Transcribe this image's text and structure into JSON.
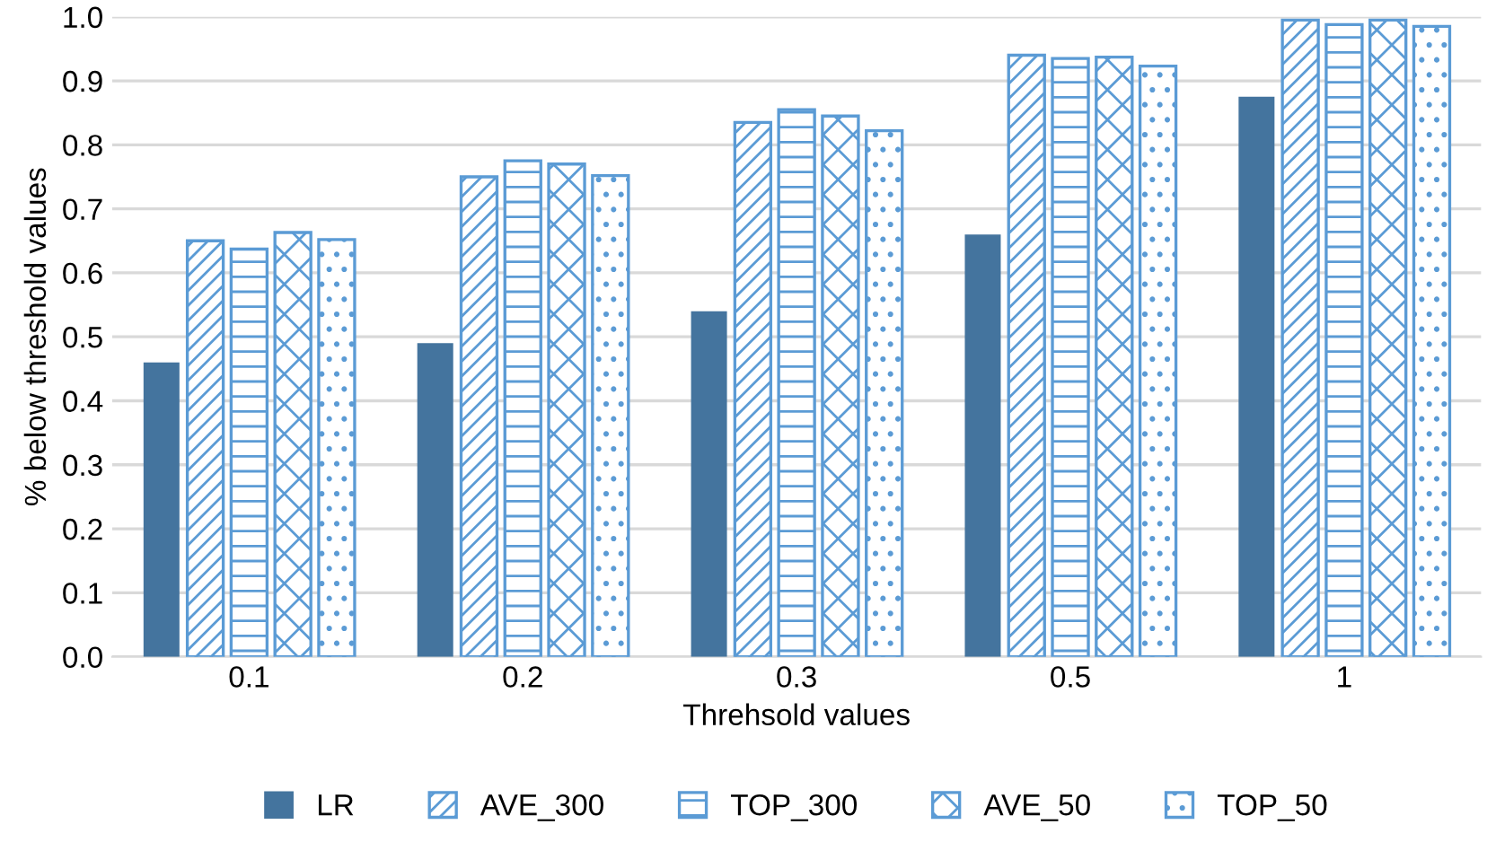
{
  "chart_data": {
    "type": "bar",
    "xlabel": "Threhsold values",
    "ylabel": "% below threshold values",
    "categories": [
      "0.1",
      "0.2",
      "0.3",
      "0.5",
      "1"
    ],
    "series": [
      {
        "name": "LR",
        "color": "#44749e",
        "values": [
          0.46,
          0.49,
          0.54,
          0.66,
          0.875
        ]
      },
      {
        "name": "AVE_300",
        "color": "#5b9bd5",
        "values": [
          0.65,
          0.75,
          0.835,
          0.94,
          0.995
        ]
      },
      {
        "name": "TOP_300",
        "color": "#5b9bd5",
        "values": [
          0.637,
          0.775,
          0.855,
          0.935,
          0.988
        ]
      },
      {
        "name": "AVE_50",
        "color": "#5b9bd5",
        "values": [
          0.663,
          0.77,
          0.845,
          0.937,
          0.995
        ]
      },
      {
        "name": "TOP_50",
        "color": "#5b9bd5",
        "values": [
          0.652,
          0.752,
          0.822,
          0.923,
          0.985
        ]
      }
    ],
    "ylim": [
      0,
      1.0
    ],
    "yticks": [
      {
        "value": 0,
        "label": "0.0"
      },
      0.1,
      0.2,
      0.3,
      0.4,
      0.5,
      0.6,
      0.7,
      0.8,
      0.9,
      {
        "value": 1,
        "label": "1.0"
      }
    ],
    "grid": "y",
    "legend": "bottom"
  }
}
